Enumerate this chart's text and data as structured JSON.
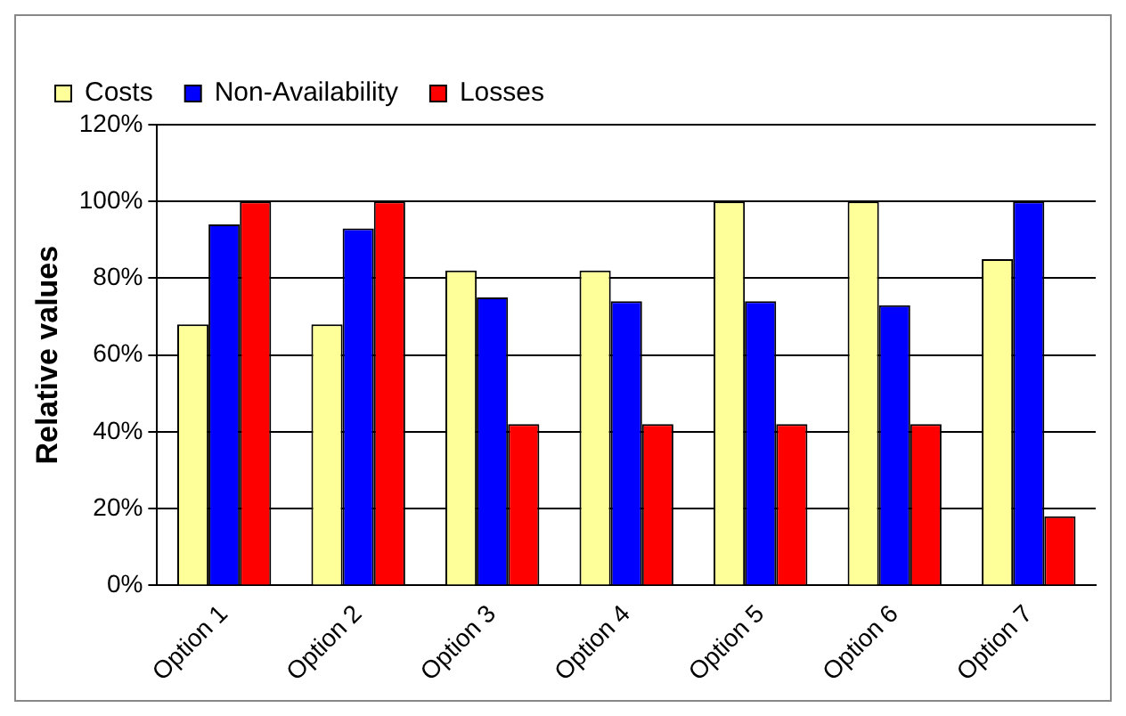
{
  "chart_data": {
    "type": "bar",
    "ylabel": "Relative values",
    "categories": [
      "Option 1",
      "Option 2",
      "Option 3",
      "Option 4",
      "Option 5",
      "Option 6",
      "Option 7"
    ],
    "series": [
      {
        "name": "Costs",
        "color": "#ffff99",
        "values": [
          68,
          68,
          82,
          82,
          100,
          100,
          85
        ]
      },
      {
        "name": "Non-Availability",
        "color": "#0000ff",
        "values": [
          94,
          93,
          75,
          74,
          74,
          73,
          100
        ]
      },
      {
        "name": "Losses",
        "color": "#ff0000",
        "values": [
          100,
          100,
          42,
          42,
          42,
          42,
          18
        ]
      }
    ],
    "ylim": [
      0,
      120
    ],
    "yticks": [
      {
        "value": 0,
        "label": "0%"
      },
      {
        "value": 20,
        "label": "20%"
      },
      {
        "value": 40,
        "label": "40%"
      },
      {
        "value": 60,
        "label": "60%"
      },
      {
        "value": 80,
        "label": "80%"
      },
      {
        "value": 100,
        "label": "100%"
      },
      {
        "value": 120,
        "label": "120%"
      }
    ],
    "grid": "y",
    "legend": "top"
  }
}
